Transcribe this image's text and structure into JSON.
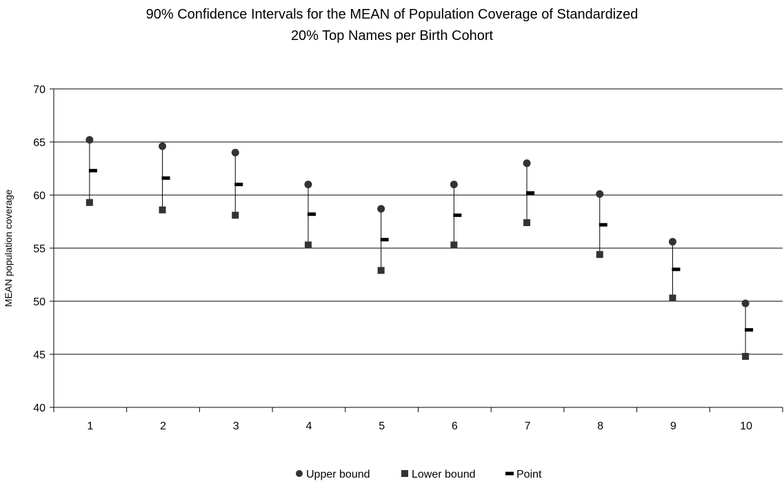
{
  "chart_data": {
    "type": "scatter",
    "title_lines": [
      "90% Confidence Intervals for the MEAN of Population Coverage of Standardized",
      "20% Top Names per Birth Cohort"
    ],
    "xlabel": "",
    "ylabel": "MEAN population coverage",
    "categories": [
      "1",
      "2",
      "3",
      "4",
      "5",
      "6",
      "7",
      "8",
      "9",
      "10"
    ],
    "ylim": [
      40,
      70
    ],
    "yticks": [
      "40",
      "45",
      "50",
      "55",
      "60",
      "65",
      "70"
    ],
    "grid": "horizontal",
    "legend_position": "bottom",
    "series": [
      {
        "name": "Upper bound",
        "marker": "circle",
        "color": "#333333",
        "values": [
          65.2,
          64.6,
          64.0,
          61.0,
          58.7,
          61.0,
          63.0,
          60.1,
          55.6,
          49.8
        ]
      },
      {
        "name": "Lower bound",
        "marker": "square",
        "color": "#333333",
        "values": [
          59.3,
          58.6,
          58.1,
          55.3,
          52.9,
          55.3,
          57.4,
          54.4,
          50.3,
          44.8
        ]
      },
      {
        "name": "Point",
        "marker": "dash",
        "color": "#000000",
        "values": [
          62.3,
          61.6,
          61.0,
          58.2,
          55.8,
          58.1,
          60.2,
          57.2,
          53.0,
          47.3
        ]
      }
    ]
  }
}
